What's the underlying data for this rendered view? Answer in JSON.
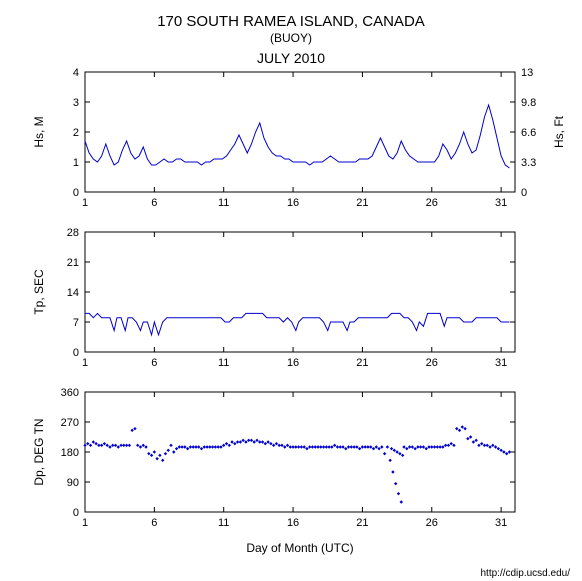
{
  "title": "170 SOUTH RAMEA ISLAND, CANADA",
  "subtitle": "(BUOY)",
  "date_title": "JULY 2010",
  "xaxis_label": "Day of Month (UTC)",
  "footer_url": "http://cdip.ucsd.edu/",
  "x_ticks": [
    1,
    6,
    11,
    16,
    21,
    26,
    31
  ],
  "x_range": [
    1,
    32
  ],
  "colors": {
    "background": "#ffffff",
    "axis": "#000000",
    "data": "#0000cc"
  },
  "panel_hs": {
    "ylabel_left": "Hs, M",
    "ylabel_right": "Hs, Ft",
    "ylim": [
      0,
      4
    ],
    "yticks": [
      0,
      1,
      2,
      3,
      4
    ],
    "yticks_right": [
      0,
      3.3,
      6.6,
      9.8,
      13
    ],
    "series": [
      [
        1.0,
        1.7
      ],
      [
        1.3,
        1.3
      ],
      [
        1.6,
        1.1
      ],
      [
        1.9,
        1.0
      ],
      [
        2.2,
        1.2
      ],
      [
        2.5,
        1.6
      ],
      [
        2.8,
        1.2
      ],
      [
        3.1,
        0.9
      ],
      [
        3.4,
        1.0
      ],
      [
        3.7,
        1.4
      ],
      [
        4.0,
        1.7
      ],
      [
        4.3,
        1.3
      ],
      [
        4.6,
        1.1
      ],
      [
        4.9,
        1.2
      ],
      [
        5.2,
        1.5
      ],
      [
        5.5,
        1.1
      ],
      [
        5.8,
        0.9
      ],
      [
        6.1,
        0.9
      ],
      [
        6.4,
        1.0
      ],
      [
        6.7,
        1.1
      ],
      [
        7.0,
        1.0
      ],
      [
        7.3,
        1.0
      ],
      [
        7.6,
        1.1
      ],
      [
        7.9,
        1.1
      ],
      [
        8.2,
        1.0
      ],
      [
        8.5,
        1.0
      ],
      [
        8.8,
        1.0
      ],
      [
        9.1,
        1.0
      ],
      [
        9.4,
        0.9
      ],
      [
        9.7,
        1.0
      ],
      [
        10.0,
        1.0
      ],
      [
        10.3,
        1.1
      ],
      [
        10.6,
        1.1
      ],
      [
        10.9,
        1.1
      ],
      [
        11.2,
        1.2
      ],
      [
        11.5,
        1.4
      ],
      [
        11.8,
        1.6
      ],
      [
        12.1,
        1.9
      ],
      [
        12.4,
        1.6
      ],
      [
        12.7,
        1.3
      ],
      [
        13.0,
        1.6
      ],
      [
        13.3,
        2.0
      ],
      [
        13.6,
        2.3
      ],
      [
        13.9,
        1.8
      ],
      [
        14.2,
        1.5
      ],
      [
        14.5,
        1.3
      ],
      [
        14.8,
        1.2
      ],
      [
        15.1,
        1.2
      ],
      [
        15.4,
        1.1
      ],
      [
        15.7,
        1.1
      ],
      [
        16.0,
        1.0
      ],
      [
        16.3,
        1.0
      ],
      [
        16.6,
        1.0
      ],
      [
        16.9,
        1.0
      ],
      [
        17.2,
        0.9
      ],
      [
        17.5,
        1.0
      ],
      [
        17.8,
        1.0
      ],
      [
        18.1,
        1.0
      ],
      [
        18.4,
        1.1
      ],
      [
        18.7,
        1.2
      ],
      [
        19.0,
        1.1
      ],
      [
        19.3,
        1.0
      ],
      [
        19.6,
        1.0
      ],
      [
        19.9,
        1.0
      ],
      [
        20.2,
        1.0
      ],
      [
        20.5,
        1.0
      ],
      [
        20.8,
        1.1
      ],
      [
        21.1,
        1.1
      ],
      [
        21.4,
        1.1
      ],
      [
        21.7,
        1.2
      ],
      [
        22.0,
        1.5
      ],
      [
        22.3,
        1.8
      ],
      [
        22.6,
        1.5
      ],
      [
        22.9,
        1.2
      ],
      [
        23.2,
        1.1
      ],
      [
        23.5,
        1.3
      ],
      [
        23.8,
        1.7
      ],
      [
        24.1,
        1.4
      ],
      [
        24.4,
        1.2
      ],
      [
        24.7,
        1.1
      ],
      [
        25.0,
        1.0
      ],
      [
        25.3,
        1.0
      ],
      [
        25.6,
        1.0
      ],
      [
        25.9,
        1.0
      ],
      [
        26.2,
        1.0
      ],
      [
        26.5,
        1.2
      ],
      [
        26.8,
        1.6
      ],
      [
        27.1,
        1.4
      ],
      [
        27.4,
        1.1
      ],
      [
        27.7,
        1.3
      ],
      [
        28.0,
        1.6
      ],
      [
        28.3,
        2.0
      ],
      [
        28.6,
        1.6
      ],
      [
        28.9,
        1.3
      ],
      [
        29.2,
        1.4
      ],
      [
        29.5,
        1.9
      ],
      [
        29.8,
        2.5
      ],
      [
        30.1,
        2.9
      ],
      [
        30.4,
        2.4
      ],
      [
        30.7,
        1.8
      ],
      [
        31.0,
        1.2
      ],
      [
        31.3,
        0.9
      ],
      [
        31.6,
        0.8
      ]
    ]
  },
  "panel_tp": {
    "ylabel_left": "Tp, SEC",
    "ylim": [
      0,
      28
    ],
    "yticks": [
      0,
      7,
      14,
      21,
      28
    ],
    "series": [
      [
        1.0,
        9
      ],
      [
        1.3,
        9
      ],
      [
        1.6,
        8
      ],
      [
        1.9,
        9
      ],
      [
        2.2,
        8
      ],
      [
        2.5,
        8
      ],
      [
        2.8,
        8
      ],
      [
        3.1,
        5
      ],
      [
        3.3,
        8
      ],
      [
        3.6,
        8
      ],
      [
        3.9,
        5
      ],
      [
        4.1,
        8
      ],
      [
        4.4,
        8
      ],
      [
        4.7,
        7
      ],
      [
        5.0,
        5
      ],
      [
        5.2,
        7
      ],
      [
        5.5,
        7
      ],
      [
        5.8,
        4
      ],
      [
        6.0,
        7
      ],
      [
        6.3,
        4
      ],
      [
        6.6,
        7
      ],
      [
        6.9,
        8
      ],
      [
        7.2,
        8
      ],
      [
        7.5,
        8
      ],
      [
        7.8,
        8
      ],
      [
        8.1,
        8
      ],
      [
        8.4,
        8
      ],
      [
        8.7,
        8
      ],
      [
        9.0,
        8
      ],
      [
        9.3,
        8
      ],
      [
        9.6,
        8
      ],
      [
        9.9,
        8
      ],
      [
        10.2,
        8
      ],
      [
        10.5,
        8
      ],
      [
        10.8,
        8
      ],
      [
        11.1,
        7
      ],
      [
        11.4,
        7
      ],
      [
        11.7,
        8
      ],
      [
        12.0,
        8
      ],
      [
        12.3,
        8
      ],
      [
        12.6,
        9
      ],
      [
        12.9,
        9
      ],
      [
        13.2,
        9
      ],
      [
        13.5,
        9
      ],
      [
        13.8,
        9
      ],
      [
        14.1,
        8
      ],
      [
        14.4,
        8
      ],
      [
        14.7,
        8
      ],
      [
        15.0,
        8
      ],
      [
        15.3,
        7
      ],
      [
        15.6,
        8
      ],
      [
        15.9,
        7
      ],
      [
        16.2,
        5
      ],
      [
        16.4,
        7
      ],
      [
        16.7,
        8
      ],
      [
        17.0,
        8
      ],
      [
        17.3,
        8
      ],
      [
        17.6,
        8
      ],
      [
        17.9,
        8
      ],
      [
        18.2,
        7
      ],
      [
        18.5,
        5
      ],
      [
        18.7,
        7
      ],
      [
        19.0,
        7
      ],
      [
        19.3,
        7
      ],
      [
        19.6,
        7
      ],
      [
        19.9,
        5
      ],
      [
        20.1,
        7
      ],
      [
        20.4,
        7
      ],
      [
        20.7,
        8
      ],
      [
        21.0,
        8
      ],
      [
        21.3,
        8
      ],
      [
        21.6,
        8
      ],
      [
        21.9,
        8
      ],
      [
        22.2,
        8
      ],
      [
        22.5,
        8
      ],
      [
        22.8,
        8
      ],
      [
        23.1,
        9
      ],
      [
        23.4,
        9
      ],
      [
        23.7,
        9
      ],
      [
        24.0,
        8
      ],
      [
        24.3,
        8
      ],
      [
        24.6,
        7
      ],
      [
        24.9,
        5
      ],
      [
        25.1,
        7
      ],
      [
        25.4,
        6
      ],
      [
        25.7,
        9
      ],
      [
        26.0,
        9
      ],
      [
        26.3,
        9
      ],
      [
        26.6,
        9
      ],
      [
        26.9,
        6
      ],
      [
        27.1,
        8
      ],
      [
        27.4,
        8
      ],
      [
        27.7,
        8
      ],
      [
        28.0,
        8
      ],
      [
        28.3,
        7
      ],
      [
        28.6,
        7
      ],
      [
        28.9,
        7
      ],
      [
        29.2,
        8
      ],
      [
        29.5,
        8
      ],
      [
        29.8,
        8
      ],
      [
        30.1,
        8
      ],
      [
        30.4,
        8
      ],
      [
        30.7,
        8
      ],
      [
        31.0,
        7
      ],
      [
        31.3,
        7
      ],
      [
        31.6,
        7
      ]
    ]
  },
  "panel_dp": {
    "ylabel_left": "Dp, DEG TN",
    "ylim": [
      0,
      360
    ],
    "yticks": [
      0,
      90,
      180,
      270,
      360
    ],
    "points": [
      [
        1.0,
        200
      ],
      [
        1.2,
        205
      ],
      [
        1.4,
        200
      ],
      [
        1.6,
        210
      ],
      [
        1.8,
        205
      ],
      [
        2.0,
        200
      ],
      [
        2.2,
        200
      ],
      [
        2.4,
        205
      ],
      [
        2.6,
        200
      ],
      [
        2.8,
        195
      ],
      [
        3.0,
        200
      ],
      [
        3.2,
        200
      ],
      [
        3.4,
        195
      ],
      [
        3.6,
        200
      ],
      [
        3.8,
        200
      ],
      [
        4.0,
        200
      ],
      [
        4.2,
        200
      ],
      [
        4.4,
        245
      ],
      [
        4.6,
        250
      ],
      [
        4.8,
        200
      ],
      [
        5.0,
        195
      ],
      [
        5.2,
        200
      ],
      [
        5.4,
        195
      ],
      [
        5.6,
        175
      ],
      [
        5.8,
        170
      ],
      [
        6.0,
        180
      ],
      [
        6.2,
        160
      ],
      [
        6.4,
        170
      ],
      [
        6.6,
        155
      ],
      [
        6.8,
        175
      ],
      [
        7.0,
        185
      ],
      [
        7.2,
        200
      ],
      [
        7.4,
        180
      ],
      [
        7.6,
        190
      ],
      [
        7.8,
        195
      ],
      [
        8.0,
        195
      ],
      [
        8.2,
        195
      ],
      [
        8.4,
        190
      ],
      [
        8.6,
        195
      ],
      [
        8.8,
        195
      ],
      [
        9.0,
        195
      ],
      [
        9.2,
        195
      ],
      [
        9.4,
        190
      ],
      [
        9.6,
        195
      ],
      [
        9.8,
        195
      ],
      [
        10.0,
        195
      ],
      [
        10.2,
        195
      ],
      [
        10.4,
        195
      ],
      [
        10.6,
        195
      ],
      [
        10.8,
        195
      ],
      [
        11.0,
        200
      ],
      [
        11.2,
        205
      ],
      [
        11.4,
        200
      ],
      [
        11.6,
        210
      ],
      [
        11.8,
        205
      ],
      [
        12.0,
        210
      ],
      [
        12.2,
        210
      ],
      [
        12.4,
        215
      ],
      [
        12.6,
        210
      ],
      [
        12.8,
        215
      ],
      [
        13.0,
        215
      ],
      [
        13.2,
        210
      ],
      [
        13.4,
        215
      ],
      [
        13.6,
        210
      ],
      [
        13.8,
        210
      ],
      [
        14.0,
        205
      ],
      [
        14.2,
        210
      ],
      [
        14.4,
        205
      ],
      [
        14.6,
        200
      ],
      [
        14.8,
        205
      ],
      [
        15.0,
        200
      ],
      [
        15.2,
        200
      ],
      [
        15.4,
        195
      ],
      [
        15.6,
        200
      ],
      [
        15.8,
        195
      ],
      [
        16.0,
        195
      ],
      [
        16.2,
        195
      ],
      [
        16.4,
        195
      ],
      [
        16.6,
        195
      ],
      [
        16.8,
        195
      ],
      [
        17.0,
        190
      ],
      [
        17.2,
        195
      ],
      [
        17.4,
        195
      ],
      [
        17.6,
        195
      ],
      [
        17.8,
        195
      ],
      [
        18.0,
        195
      ],
      [
        18.2,
        195
      ],
      [
        18.4,
        195
      ],
      [
        18.6,
        195
      ],
      [
        18.8,
        195
      ],
      [
        19.0,
        200
      ],
      [
        19.2,
        195
      ],
      [
        19.4,
        195
      ],
      [
        19.6,
        195
      ],
      [
        19.8,
        190
      ],
      [
        20.0,
        195
      ],
      [
        20.2,
        195
      ],
      [
        20.4,
        195
      ],
      [
        20.6,
        195
      ],
      [
        20.8,
        190
      ],
      [
        21.0,
        195
      ],
      [
        21.2,
        195
      ],
      [
        21.4,
        195
      ],
      [
        21.6,
        195
      ],
      [
        21.8,
        190
      ],
      [
        22.0,
        195
      ],
      [
        22.2,
        190
      ],
      [
        22.4,
        195
      ],
      [
        22.6,
        175
      ],
      [
        22.8,
        195
      ],
      [
        23.0,
        155
      ],
      [
        23.1,
        190
      ],
      [
        23.2,
        120
      ],
      [
        23.3,
        185
      ],
      [
        23.4,
        85
      ],
      [
        23.5,
        180
      ],
      [
        23.6,
        55
      ],
      [
        23.7,
        175
      ],
      [
        23.8,
        30
      ],
      [
        23.9,
        170
      ],
      [
        24.0,
        195
      ],
      [
        24.2,
        190
      ],
      [
        24.4,
        195
      ],
      [
        24.6,
        195
      ],
      [
        24.8,
        190
      ],
      [
        25.0,
        195
      ],
      [
        25.2,
        195
      ],
      [
        25.4,
        195
      ],
      [
        25.6,
        190
      ],
      [
        25.8,
        195
      ],
      [
        26.0,
        195
      ],
      [
        26.2,
        195
      ],
      [
        26.4,
        195
      ],
      [
        26.6,
        195
      ],
      [
        26.8,
        195
      ],
      [
        27.0,
        200
      ],
      [
        27.2,
        200
      ],
      [
        27.4,
        205
      ],
      [
        27.6,
        200
      ],
      [
        27.8,
        250
      ],
      [
        28.0,
        245
      ],
      [
        28.2,
        255
      ],
      [
        28.4,
        250
      ],
      [
        28.6,
        220
      ],
      [
        28.8,
        225
      ],
      [
        29.0,
        210
      ],
      [
        29.2,
        215
      ],
      [
        29.4,
        200
      ],
      [
        29.6,
        205
      ],
      [
        29.8,
        200
      ],
      [
        30.0,
        200
      ],
      [
        30.2,
        195
      ],
      [
        30.4,
        200
      ],
      [
        30.6,
        195
      ],
      [
        30.8,
        190
      ],
      [
        31.0,
        185
      ],
      [
        31.2,
        180
      ],
      [
        31.4,
        175
      ],
      [
        31.6,
        180
      ]
    ]
  }
}
